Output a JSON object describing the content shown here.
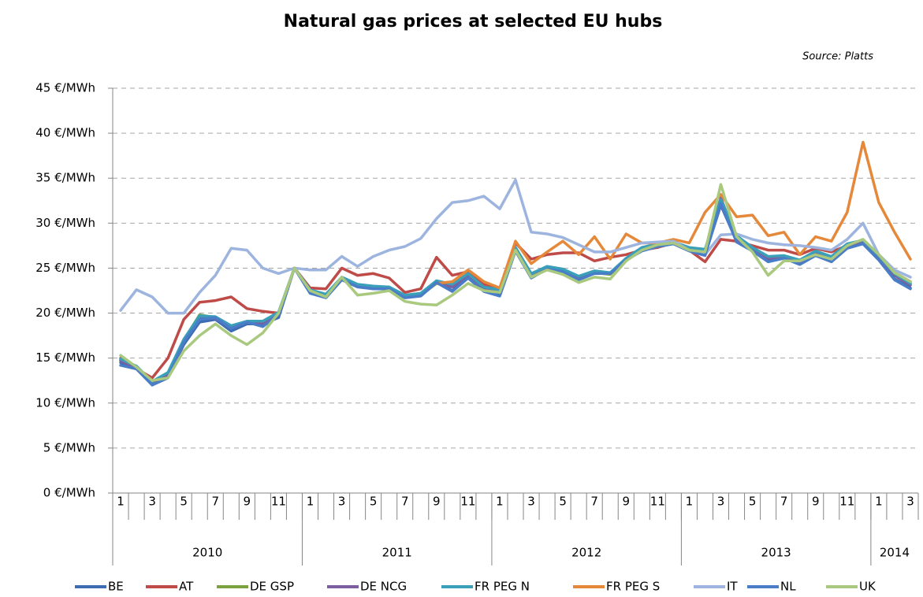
{
  "chart_data": {
    "type": "line",
    "title": "Natural gas prices at selected EU hubs",
    "source": "Source: Platts",
    "categories": [
      "1",
      null,
      "3",
      null,
      "5",
      null,
      "7",
      null,
      "9",
      null,
      "11",
      null,
      "1",
      null,
      "3",
      null,
      "5",
      null,
      "7",
      null,
      "9",
      null,
      "11",
      null,
      "1",
      null,
      "3",
      null,
      "5",
      null,
      "7",
      null,
      "9",
      null,
      "11",
      null,
      "1",
      null,
      "3",
      null,
      "5",
      null,
      "7",
      null,
      "9",
      null,
      "11",
      null,
      "1",
      null,
      "3"
    ],
    "groups": [
      {
        "label": "2010",
        "span": 12
      },
      {
        "label": "2011",
        "span": 12
      },
      {
        "label": "2012",
        "span": 12
      },
      {
        "label": "2013",
        "span": 12
      },
      {
        "label": "2014",
        "span": 3
      }
    ],
    "ylim": [
      0,
      45
    ],
    "yticks": [
      {
        "value": 0,
        "label": "0 €/MWh"
      },
      {
        "value": 5,
        "label": "5 €/MWh"
      },
      {
        "value": 10,
        "label": "10 €/MWh"
      },
      {
        "value": 15,
        "label": "15 €/MWh"
      },
      {
        "value": 20,
        "label": "20 €/MWh"
      },
      {
        "value": 25,
        "label": "25 €/MWh"
      },
      {
        "value": 30,
        "label": "30 €/MWh"
      },
      {
        "value": 35,
        "label": "35 €/MWh"
      },
      {
        "value": 40,
        "label": "40 €/MWh"
      },
      {
        "value": 45,
        "label": "45 €/MWh"
      }
    ],
    "grid": true,
    "legend": "bottom",
    "series": [
      {
        "name": "BE",
        "color": "#3d6cb3",
        "values": [
          14.5,
          14,
          12,
          13,
          16.5,
          19,
          19.3,
          18,
          18.8,
          18.8,
          19.5,
          25,
          22.3,
          21.8,
          23.8,
          23,
          22.8,
          22.8,
          21.8,
          22,
          23.5,
          22.5,
          24,
          22.5,
          22,
          27,
          24,
          25,
          24.7,
          23.8,
          24.5,
          24.5,
          26,
          27,
          27.5,
          27.8,
          27,
          26.5,
          32,
          28,
          27,
          25.8,
          26.2,
          25.5,
          26.5,
          25.8,
          27.3,
          27.8,
          26,
          23.8,
          22.8
        ]
      },
      {
        "name": "AT",
        "color": "#be4b48",
        "values": [
          15,
          13.8,
          12.8,
          15,
          19.3,
          21.2,
          21.4,
          21.8,
          20.5,
          20.2,
          20,
          25,
          22.8,
          22.7,
          25,
          24.2,
          24.4,
          23.9,
          22.3,
          22.7,
          26.2,
          24.2,
          24.6,
          23.2,
          22.7,
          27.8,
          26,
          26.5,
          26.7,
          26.7,
          25.8,
          26.2,
          26.5,
          27,
          27.3,
          27.8,
          27,
          25.7,
          28.2,
          28,
          27.5,
          27,
          27,
          26.5,
          27.2,
          26.8,
          27.5,
          27.8,
          26.5,
          24.5,
          23.5
        ]
      },
      {
        "name": "DE GSP",
        "color": "#7ba23f",
        "values": [
          14.8,
          14,
          12.3,
          13.3,
          17,
          19.8,
          19.5,
          18.5,
          19,
          19,
          20,
          25,
          22.5,
          22,
          23.8,
          23,
          22.8,
          22.8,
          21.8,
          22,
          23.3,
          23,
          24.3,
          22.8,
          22.5,
          27.2,
          24.3,
          25,
          24.8,
          24,
          24.5,
          24.3,
          26,
          27.2,
          27.6,
          27.8,
          27.2,
          27,
          32.5,
          28.5,
          27.2,
          26.2,
          26.3,
          25.8,
          26.8,
          26.2,
          27.6,
          28,
          26.3,
          24.3,
          23.2
        ]
      },
      {
        "name": "DE NCG",
        "color": "#7d5fa0",
        "values": [
          14.7,
          13.9,
          12.2,
          13.2,
          16.9,
          19.6,
          19.4,
          18.4,
          19,
          18.9,
          19.9,
          25,
          22.4,
          21.9,
          23.9,
          23.1,
          22.9,
          22.9,
          21.9,
          22.1,
          23.4,
          22.9,
          24.2,
          22.7,
          22.4,
          27.1,
          24.2,
          25.1,
          24.8,
          23.9,
          24.6,
          24.4,
          26,
          27.1,
          27.5,
          27.8,
          27.1,
          26.8,
          32.8,
          28.3,
          27.1,
          26.1,
          26.2,
          25.7,
          26.7,
          26.1,
          27.5,
          27.9,
          26.2,
          24.2,
          23.1
        ]
      },
      {
        "name": "FR PEG N",
        "color": "#3aa0ba",
        "values": [
          14.9,
          14.1,
          12.4,
          13.4,
          17.1,
          19.7,
          19.6,
          18.6,
          19.1,
          19.1,
          20.1,
          25,
          22.6,
          22.1,
          24,
          23.2,
          23,
          22.9,
          22,
          22.2,
          23.6,
          23.2,
          24.4,
          22.9,
          22.6,
          27.3,
          24.4,
          25.2,
          24.9,
          24.1,
          24.7,
          24.5,
          26.1,
          27.3,
          27.7,
          27.9,
          27.3,
          27.1,
          32.6,
          28.6,
          27.3,
          26.3,
          26.4,
          25.9,
          26.9,
          26.3,
          27.7,
          28.1,
          26.4,
          24.4,
          23.3
        ]
      },
      {
        "name": "FR PEG S",
        "color": "#e5883a",
        "values": [
          null,
          null,
          null,
          null,
          null,
          null,
          null,
          null,
          null,
          null,
          null,
          null,
          null,
          null,
          null,
          null,
          null,
          null,
          null,
          null,
          23.3,
          23.5,
          24.8,
          23.5,
          22.8,
          28,
          25.5,
          26.8,
          28,
          26.5,
          28.5,
          26,
          28.8,
          27.8,
          27.8,
          28.2,
          27.8,
          31.2,
          33.2,
          30.7,
          30.9,
          28.6,
          29,
          26.5,
          28.5,
          28,
          31.2,
          39,
          32.3,
          29,
          26
        ]
      },
      {
        "name": "IT",
        "color": "#9db4de",
        "values": [
          20.3,
          22.6,
          21.8,
          20,
          20,
          22.3,
          24.2,
          27.2,
          27,
          25,
          24.4,
          25,
          24.8,
          24.8,
          26.3,
          25.2,
          26.3,
          27,
          27.4,
          28.3,
          30.5,
          32.3,
          32.5,
          33,
          31.6,
          34.8,
          29,
          28.8,
          28.4,
          27.6,
          26.8,
          26.8,
          27.3,
          27.8,
          27.9,
          28,
          27,
          26.5,
          28.7,
          28.8,
          28.2,
          27.8,
          27.6,
          27.5,
          27.3,
          27,
          28.2,
          30,
          26.5,
          24.8,
          24
        ]
      },
      {
        "name": "NL",
        "color": "#4a7dc8",
        "values": [
          14.2,
          13.8,
          12,
          12.8,
          16.8,
          19.3,
          19.5,
          18.3,
          19,
          18.5,
          19.8,
          25,
          22.2,
          21.7,
          23.7,
          22.9,
          22.7,
          22.7,
          21.7,
          21.9,
          23.4,
          22.4,
          23.9,
          22.4,
          21.9,
          26.9,
          23.9,
          24.9,
          24.6,
          23.7,
          24.4,
          24.4,
          25.9,
          26.9,
          27.4,
          27.7,
          26.9,
          26.4,
          32.2,
          27.9,
          26.9,
          25.7,
          26.1,
          25.4,
          26.4,
          25.7,
          27.2,
          27.7,
          25.9,
          23.7,
          22.7
        ]
      },
      {
        "name": "UK",
        "color": "#a9c97f",
        "values": [
          15.3,
          14,
          12.5,
          12.8,
          15.8,
          17.5,
          18.8,
          17.5,
          16.5,
          17.8,
          20,
          25,
          22.5,
          21.8,
          24,
          22,
          22.2,
          22.5,
          21.3,
          21,
          20.9,
          22,
          23.3,
          22.5,
          22.3,
          27,
          24,
          24.8,
          24.3,
          23.4,
          24,
          23.8,
          25.8,
          27,
          27.6,
          27.8,
          27,
          26.8,
          34.3,
          28.5,
          26.8,
          24.2,
          25.8,
          25.8,
          26.5,
          26,
          27.5,
          28.2,
          26.5,
          24.5,
          23.5
        ]
      }
    ]
  }
}
